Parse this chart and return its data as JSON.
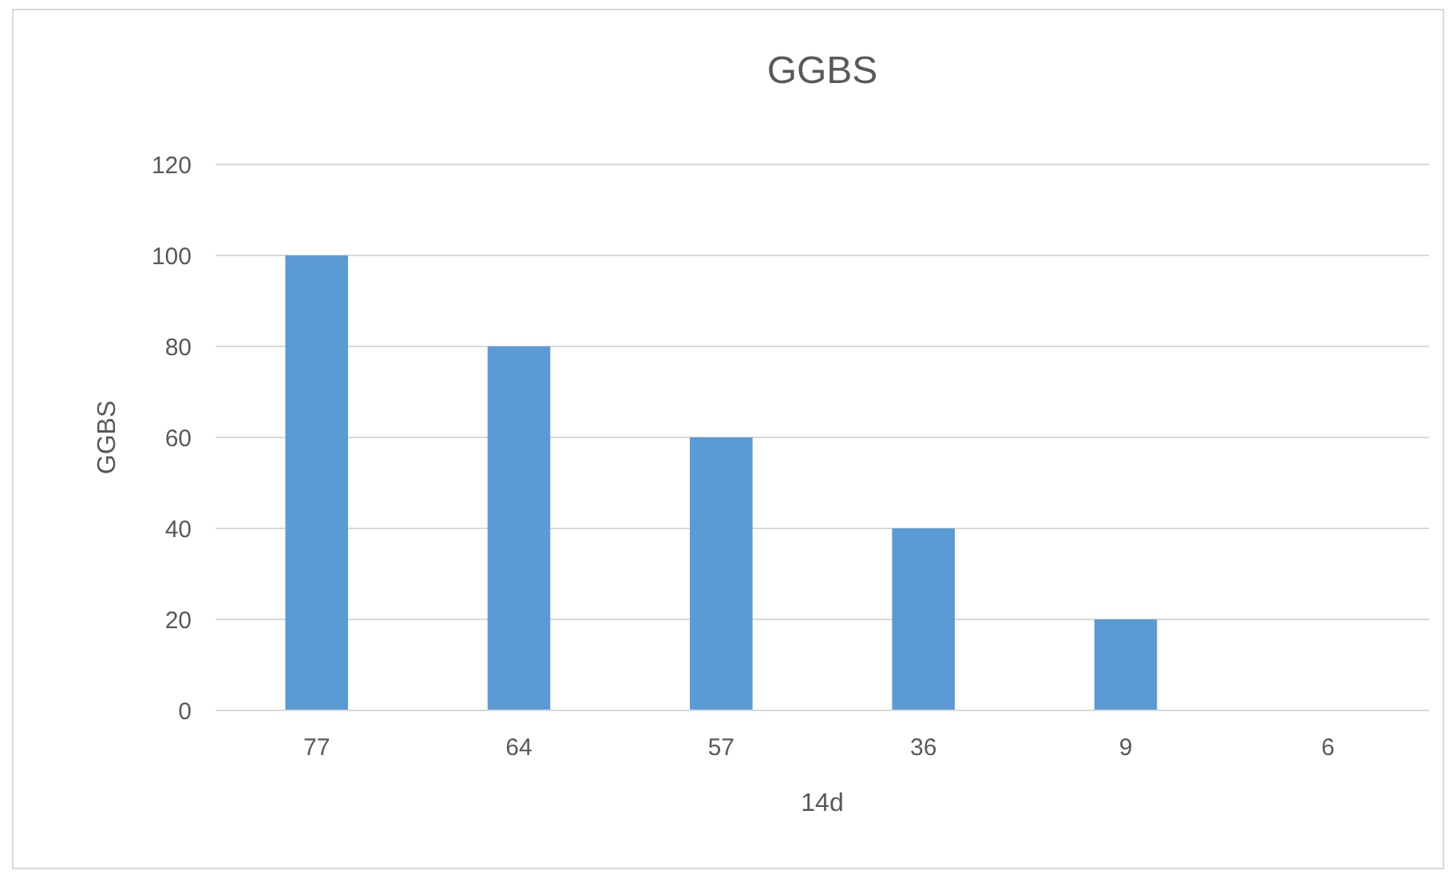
{
  "chart_data": {
    "type": "bar",
    "title": "GGBS",
    "xlabel": "14d",
    "ylabel": "GGBS",
    "categories": [
      "77",
      "64",
      "57",
      "36",
      "9",
      "6"
    ],
    "values": [
      100,
      80,
      60,
      40,
      20,
      0
    ],
    "color": "#5b9bd5",
    "ylim": [
      0,
      120
    ],
    "yticks": [
      0,
      20,
      40,
      60,
      80,
      100,
      120
    ],
    "grid": "y"
  }
}
